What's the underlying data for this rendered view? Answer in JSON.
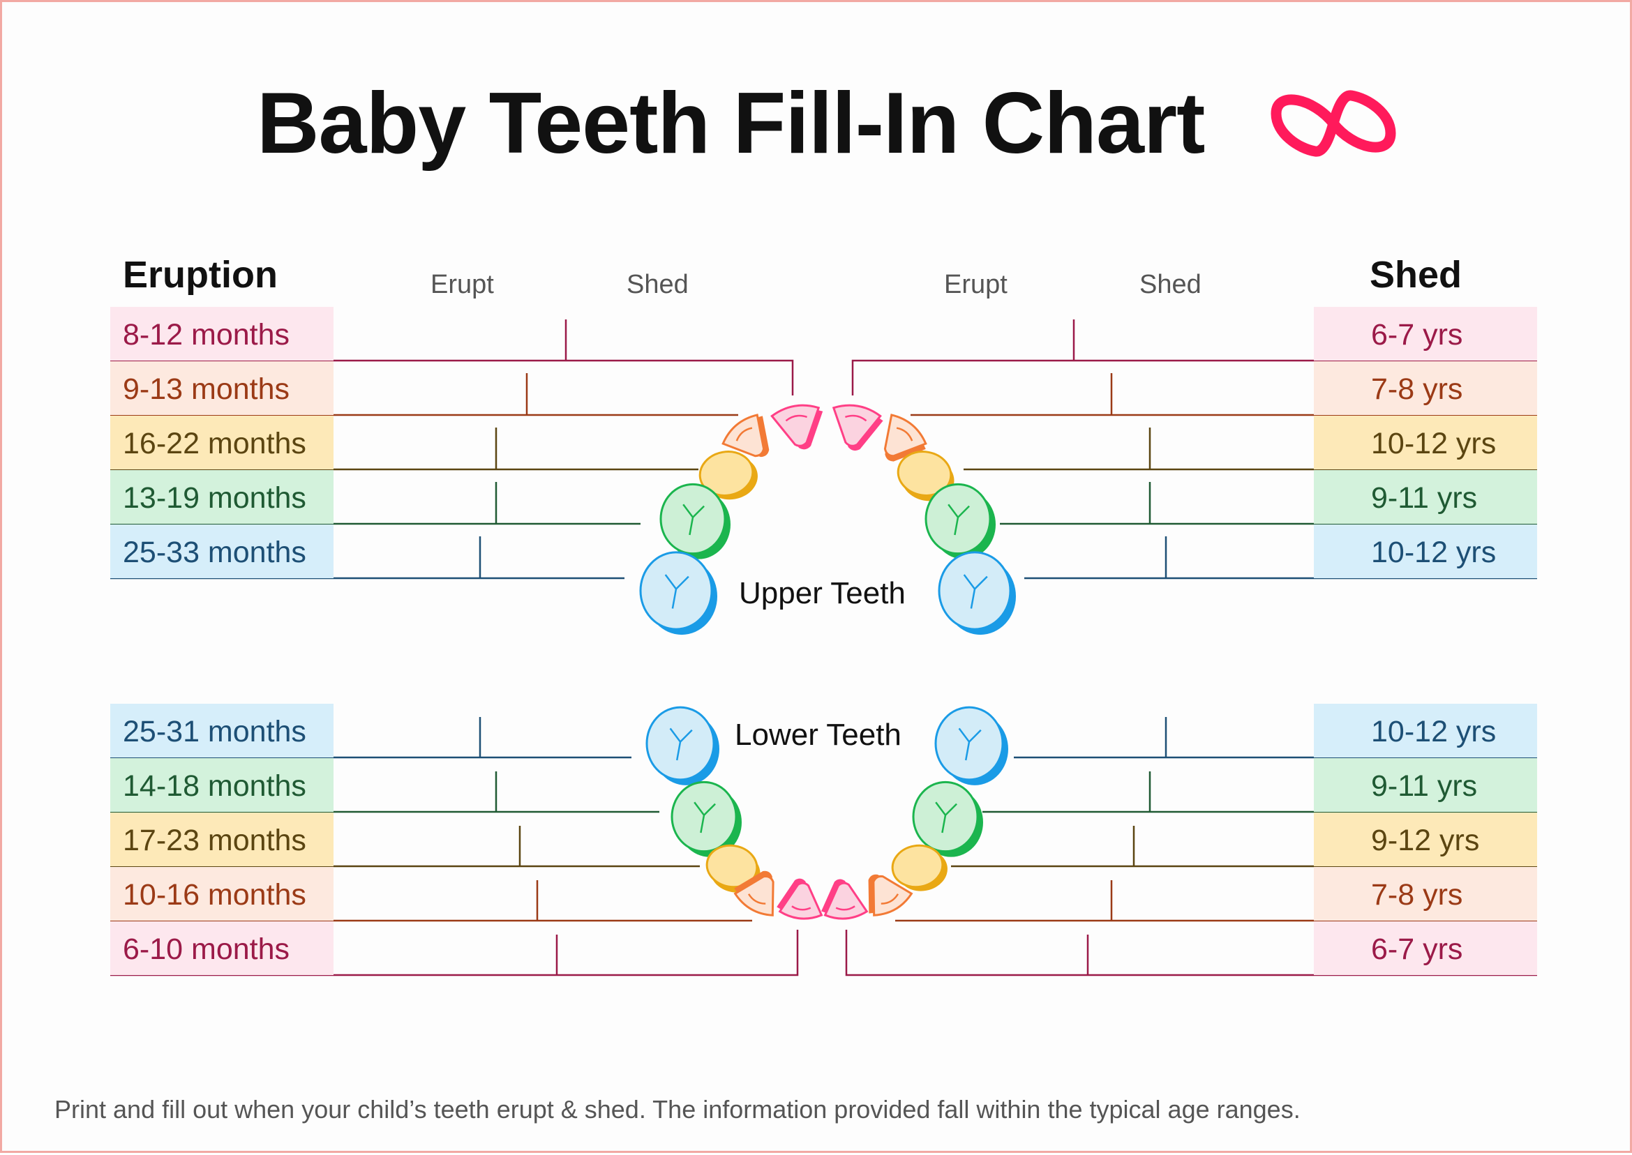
{
  "title": "Baby Teeth Fill-In Chart",
  "brand_color": "#ff1a5b",
  "headers": {
    "eruption": "Eruption",
    "shed": "Shed",
    "left_erupt": "Erupt",
    "left_shed": "Shed",
    "right_erupt": "Erupt",
    "right_shed": "Shed"
  },
  "jaw_labels": {
    "upper": "Upper Teeth",
    "lower": "Lower Teeth"
  },
  "upper": [
    {
      "tooth": "central-incisor",
      "eruption": "8-12 months",
      "shed": "6-7 yrs",
      "color": "#9b1a48",
      "bg": "#fde7ee",
      "fill": "#fbd3e0",
      "edge": "#ff3f86"
    },
    {
      "tooth": "lateral-incisor",
      "eruption": "9-13 months",
      "shed": "7-8 yrs",
      "color": "#9b3a16",
      "bg": "#fde9df",
      "fill": "#fde3d4",
      "edge": "#f27a35"
    },
    {
      "tooth": "canine",
      "eruption": "16-22 months",
      "shed": "10-12 yrs",
      "color": "#5b4511",
      "bg": "#fde9b8",
      "fill": "#fde3a0",
      "edge": "#e9a814"
    },
    {
      "tooth": "first-molar",
      "eruption": "13-19 months",
      "shed": "9-11 yrs",
      "color": "#1f5a33",
      "bg": "#d3f2dc",
      "fill": "#cdf0d6",
      "edge": "#1bb54e"
    },
    {
      "tooth": "second-molar",
      "eruption": "25-33 months",
      "shed": "10-12 yrs",
      "color": "#1d4f75",
      "bg": "#d6eefa",
      "fill": "#d3ecf8",
      "edge": "#1a9be6"
    }
  ],
  "lower": [
    {
      "tooth": "second-molar",
      "eruption": "25-31 months",
      "shed": "10-12 yrs",
      "color": "#1d4f75",
      "bg": "#d6eefa",
      "fill": "#d3ecf8",
      "edge": "#1a9be6"
    },
    {
      "tooth": "first-molar",
      "eruption": "14-18 months",
      "shed": "9-11 yrs",
      "color": "#1f5a33",
      "bg": "#d3f2dc",
      "fill": "#cdf0d6",
      "edge": "#1bb54e"
    },
    {
      "tooth": "canine",
      "eruption": "17-23 months",
      "shed": "9-12 yrs",
      "color": "#5b4511",
      "bg": "#fde9b8",
      "fill": "#fde3a0",
      "edge": "#e9a814"
    },
    {
      "tooth": "lateral-incisor",
      "eruption": "10-16 months",
      "shed": "7-8 yrs",
      "color": "#9b3a16",
      "bg": "#fde9df",
      "fill": "#fde3d4",
      "edge": "#f27a35"
    },
    {
      "tooth": "central-incisor",
      "eruption": "6-10 months",
      "shed": "6-7 yrs",
      "color": "#9b1a48",
      "bg": "#fde7ee",
      "fill": "#fbd3e0",
      "edge": "#ff3f86"
    }
  ],
  "footer": "Print and fill out when your child’s teeth erupt & shed. The information provided fall within the typical age ranges."
}
